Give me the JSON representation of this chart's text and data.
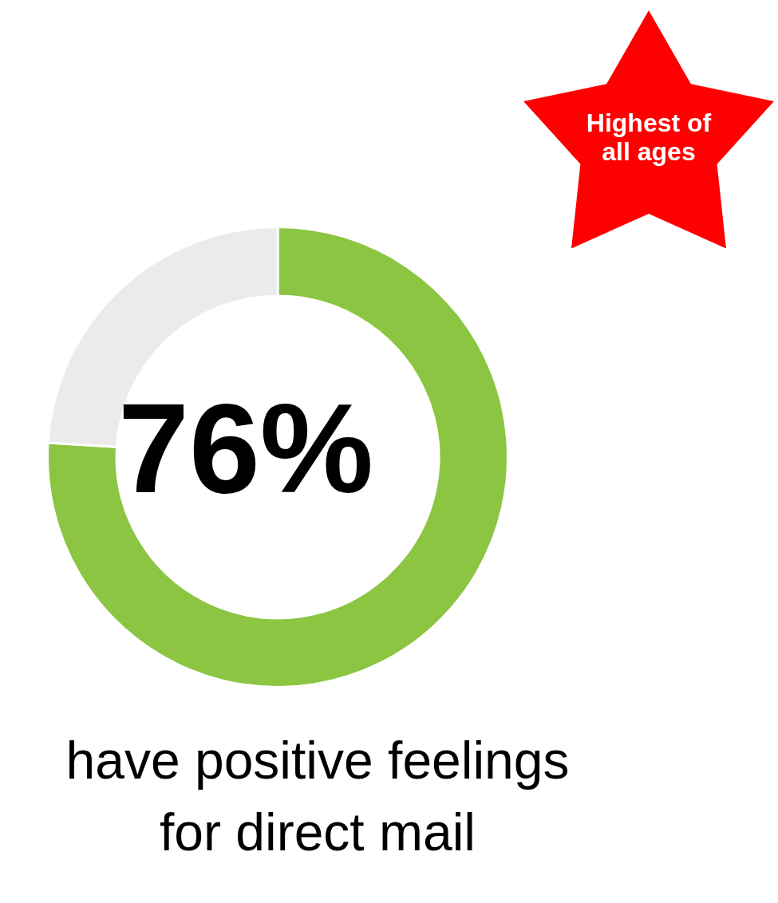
{
  "chart_data": {
    "type": "donut",
    "categories": [
      null,
      null
    ],
    "values": [
      76,
      24
    ],
    "colors": [
      "#8bc541",
      "#ebebeb"
    ],
    "value_labels": [
      "76%",
      null
    ],
    "legend": false,
    "annotations": [
      "Highest of all ages",
      "have positive feelings for direct mail"
    ]
  }
}
